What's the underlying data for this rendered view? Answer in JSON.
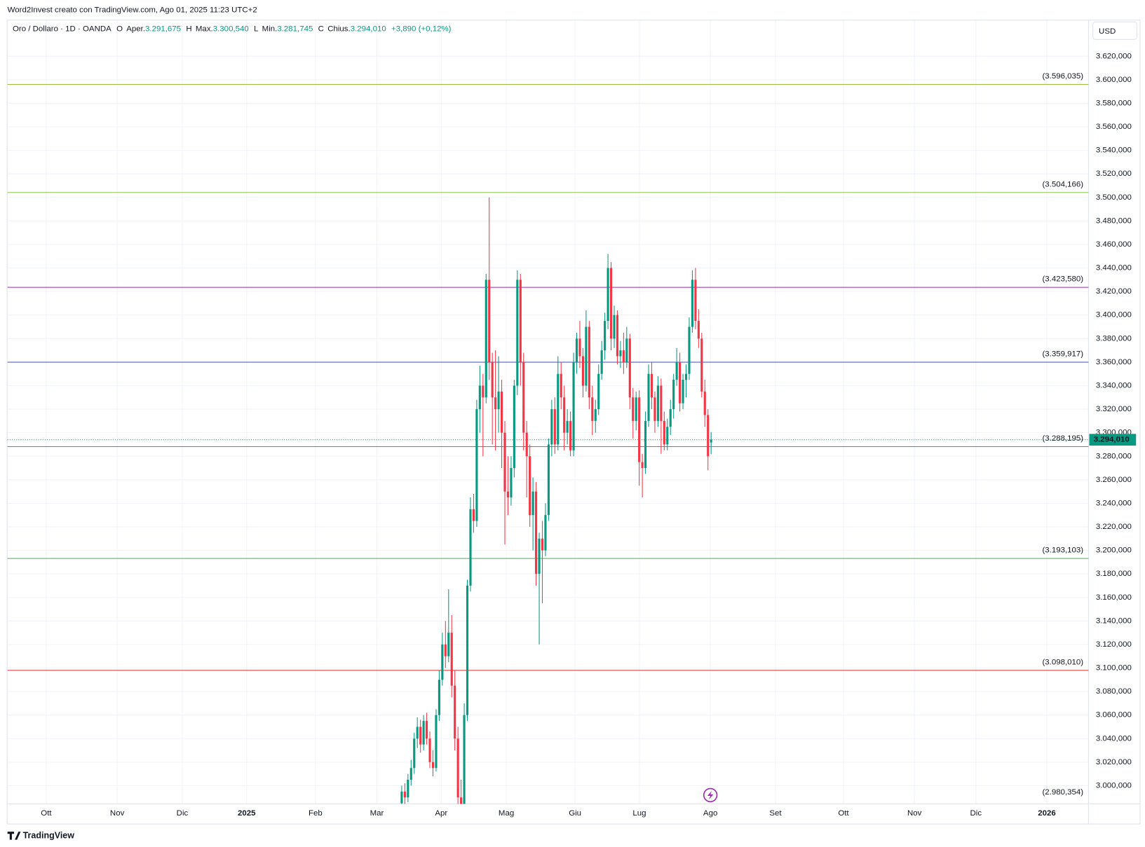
{
  "header": {
    "text": "Word2Invest creato con TradingView.com, Ago 01, 2025 11:23 UTC+2"
  },
  "legend": {
    "symbol": "Oro / Dollaro · 1D · OANDA",
    "o": "O",
    "o_name": "Aper.",
    "o_value": "3.291,675",
    "h": "H",
    "h_name": "Max.",
    "h_value": "3.300,540",
    "l": "L",
    "l_name": "Min.",
    "l_value": "3.281,745",
    "c": "C",
    "c_name": "Chius.",
    "c_value": "3.294,010",
    "change": "+3,890 (+0,12%)"
  },
  "currency": "USD",
  "footer": "TradingView",
  "chart_data": {
    "type": "candlestick",
    "up_color": "#089981",
    "down_color": "#f23645",
    "grid": true,
    "ylim": [
      2984.5,
      3650.4
    ],
    "yticks": [
      {
        "value": 3000,
        "label": "3.000,000"
      },
      {
        "value": 3020,
        "label": "3.020,000"
      },
      {
        "value": 3040,
        "label": "3.040,000"
      },
      {
        "value": 3060,
        "label": "3.060,000"
      },
      {
        "value": 3080,
        "label": "3.080,000"
      },
      {
        "value": 3100,
        "label": "3.100,000"
      },
      {
        "value": 3120,
        "label": "3.120,000"
      },
      {
        "value": 3140,
        "label": "3.140,000"
      },
      {
        "value": 3160,
        "label": "3.160,000"
      },
      {
        "value": 3180,
        "label": "3.180,000"
      },
      {
        "value": 3200,
        "label": "3.200,000"
      },
      {
        "value": 3220,
        "label": "3.220,000"
      },
      {
        "value": 3240,
        "label": "3.240,000"
      },
      {
        "value": 3260,
        "label": "3.260,000"
      },
      {
        "value": 3280,
        "label": "3.280,000"
      },
      {
        "value": 3300,
        "label": "3.300,000"
      },
      {
        "value": 3320,
        "label": "3.320,000"
      },
      {
        "value": 3340,
        "label": "3.340,000"
      },
      {
        "value": 3360,
        "label": "3.360,000"
      },
      {
        "value": 3380,
        "label": "3.380,000"
      },
      {
        "value": 3400,
        "label": "3.400,000"
      },
      {
        "value": 3420,
        "label": "3.420,000"
      },
      {
        "value": 3440,
        "label": "3.440,000"
      },
      {
        "value": 3460,
        "label": "3.460,000"
      },
      {
        "value": 3480,
        "label": "3.480,000"
      },
      {
        "value": 3500,
        "label": "3.500,000"
      },
      {
        "value": 3520,
        "label": "3.520,000"
      },
      {
        "value": 3540,
        "label": "3.540,000"
      },
      {
        "value": 3560,
        "label": "3.560,000"
      },
      {
        "value": 3580,
        "label": "3.580,000"
      },
      {
        "value": 3600,
        "label": "3.600,000"
      },
      {
        "value": 3620,
        "label": "3.620,000"
      }
    ],
    "x_labels": [
      "Ott",
      "Nov",
      "Dic",
      "2025",
      "Feb",
      "Mar",
      "Apr",
      "Mag",
      "Giu",
      "Lug",
      "Ago",
      "Set",
      "Ott",
      "Nov",
      "Dic",
      "2026"
    ],
    "levels": [
      {
        "value": 3596.035,
        "label": "(3.596,035)",
        "color": "#9bbf3b"
      },
      {
        "value": 3504.166,
        "label": "(3.504,166)",
        "color": "#8bc34a"
      },
      {
        "value": 3423.58,
        "label": "(3.423,580)",
        "color": "#9c27b0"
      },
      {
        "value": 3359.917,
        "label": "(3.359,917)",
        "color": "#3f51b5"
      },
      {
        "value": 3288.195,
        "label": "(3.288,195)",
        "color": "#26a0b0"
      },
      {
        "value": 3193.103,
        "label": "(3.193,103)",
        "color": "#4caf50"
      },
      {
        "value": 3098.01,
        "label": "(3.098,010)",
        "color": "#d32f2f"
      },
      {
        "value": 2980.354,
        "label": "(2.980,354)",
        "color": "#9e9d24"
      }
    ],
    "last_price": {
      "value": 3294.01,
      "label": "3.294,010"
    },
    "candles": [
      [
        2985,
        3000,
        2978,
        2995
      ],
      [
        2995,
        3002,
        2984,
        2990
      ],
      [
        2990,
        3010,
        2986,
        3005
      ],
      [
        3005,
        3022,
        3000,
        3015
      ],
      [
        3015,
        3045,
        3010,
        3040
      ],
      [
        3040,
        3058,
        3032,
        3050
      ],
      [
        3050,
        3056,
        3028,
        3035
      ],
      [
        3035,
        3060,
        3030,
        3055
      ],
      [
        3055,
        3062,
        3035,
        3040
      ],
      [
        3040,
        3046,
        3015,
        3020
      ],
      [
        3020,
        3030,
        3008,
        3015
      ],
      [
        3015,
        3065,
        3012,
        3060
      ],
      [
        3060,
        3098,
        3055,
        3090
      ],
      [
        3090,
        3130,
        3085,
        3120
      ],
      [
        3120,
        3140,
        3100,
        3110
      ],
      [
        3110,
        3167,
        3105,
        3130
      ],
      [
        3130,
        3145,
        3075,
        3085
      ],
      [
        3085,
        3098,
        3030,
        3040
      ],
      [
        3040,
        3050,
        2975,
        2990
      ],
      [
        2990,
        3005,
        2960,
        2975
      ],
      [
        2975,
        3070,
        2970,
        3060
      ],
      [
        3060,
        3175,
        3055,
        3170
      ],
      [
        3170,
        3245,
        3165,
        3235
      ],
      [
        3235,
        3248,
        3215,
        3225
      ],
      [
        3225,
        3328,
        3220,
        3320
      ],
      [
        3320,
        3357,
        3300,
        3340
      ],
      [
        3340,
        3350,
        3280,
        3330
      ],
      [
        3330,
        3435,
        3325,
        3430
      ],
      [
        3430,
        3500,
        3345,
        3360
      ],
      [
        3360,
        3368,
        3290,
        3330
      ],
      [
        3330,
        3370,
        3285,
        3320
      ],
      [
        3320,
        3365,
        3300,
        3335
      ],
      [
        3335,
        3345,
        3270,
        3300
      ],
      [
        3300,
        3310,
        3205,
        3250
      ],
      [
        3250,
        3280,
        3230,
        3245
      ],
      [
        3245,
        3280,
        3238,
        3270
      ],
      [
        3270,
        3345,
        3262,
        3340
      ],
      [
        3340,
        3438,
        3332,
        3430
      ],
      [
        3430,
        3435,
        3340,
        3360
      ],
      [
        3360,
        3368,
        3285,
        3300
      ],
      [
        3300,
        3310,
        3245,
        3280
      ],
      [
        3280,
        3290,
        3220,
        3230
      ],
      [
        3230,
        3262,
        3200,
        3250
      ],
      [
        3250,
        3258,
        3170,
        3180
      ],
      [
        3180,
        3215,
        3120,
        3210
      ],
      [
        3210,
        3225,
        3155,
        3200
      ],
      [
        3200,
        3240,
        3195,
        3230
      ],
      [
        3230,
        3295,
        3225,
        3290
      ],
      [
        3290,
        3328,
        3280,
        3320
      ],
      [
        3320,
        3330,
        3282,
        3290
      ],
      [
        3290,
        3365,
        3285,
        3350
      ],
      [
        3350,
        3360,
        3320,
        3330
      ],
      [
        3330,
        3340,
        3285,
        3300
      ],
      [
        3300,
        3320,
        3290,
        3310
      ],
      [
        3310,
        3318,
        3280,
        3285
      ],
      [
        3285,
        3368,
        3280,
        3360
      ],
      [
        3360,
        3385,
        3350,
        3380
      ],
      [
        3380,
        3395,
        3355,
        3365
      ],
      [
        3365,
        3372,
        3330,
        3340
      ],
      [
        3340,
        3404,
        3335,
        3390
      ],
      [
        3390,
        3395,
        3320,
        3330
      ],
      [
        3330,
        3340,
        3298,
        3310
      ],
      [
        3310,
        3328,
        3300,
        3320
      ],
      [
        3320,
        3358,
        3315,
        3350
      ],
      [
        3350,
        3378,
        3345,
        3370
      ],
      [
        3370,
        3402,
        3362,
        3395
      ],
      [
        3395,
        3452,
        3388,
        3440
      ],
      [
        3440,
        3445,
        3370,
        3380
      ],
      [
        3380,
        3408,
        3372,
        3400
      ],
      [
        3400,
        3404,
        3358,
        3365
      ],
      [
        3365,
        3378,
        3355,
        3370
      ],
      [
        3370,
        3385,
        3350,
        3360
      ],
      [
        3360,
        3390,
        3355,
        3380
      ],
      [
        3380,
        3384,
        3320,
        3330
      ],
      [
        3330,
        3338,
        3295,
        3310
      ],
      [
        3310,
        3335,
        3302,
        3330
      ],
      [
        3330,
        3336,
        3255,
        3275
      ],
      [
        3275,
        3282,
        3245,
        3270
      ],
      [
        3270,
        3318,
        3265,
        3310
      ],
      [
        3310,
        3358,
        3305,
        3350
      ],
      [
        3350,
        3360,
        3320,
        3330
      ],
      [
        3330,
        3335,
        3300,
        3310
      ],
      [
        3310,
        3348,
        3305,
        3340
      ],
      [
        3340,
        3346,
        3282,
        3310
      ],
      [
        3310,
        3318,
        3285,
        3290
      ],
      [
        3290,
        3312,
        3285,
        3305
      ],
      [
        3305,
        3328,
        3298,
        3320
      ],
      [
        3320,
        3350,
        3312,
        3345
      ],
      [
        3345,
        3372,
        3340,
        3360
      ],
      [
        3360,
        3368,
        3318,
        3325
      ],
      [
        3325,
        3350,
        3320,
        3345
      ],
      [
        3345,
        3358,
        3330,
        3350
      ],
      [
        3350,
        3398,
        3345,
        3390
      ],
      [
        3390,
        3438,
        3385,
        3430
      ],
      [
        3430,
        3440,
        3388,
        3395
      ],
      [
        3395,
        3405,
        3372,
        3380
      ],
      [
        3380,
        3385,
        3330,
        3335
      ],
      [
        3335,
        3345,
        3305,
        3315
      ],
      [
        3315,
        3320,
        3268,
        3280
      ],
      [
        3291.675,
        3300.54,
        3281.745,
        3294.01
      ]
    ]
  }
}
